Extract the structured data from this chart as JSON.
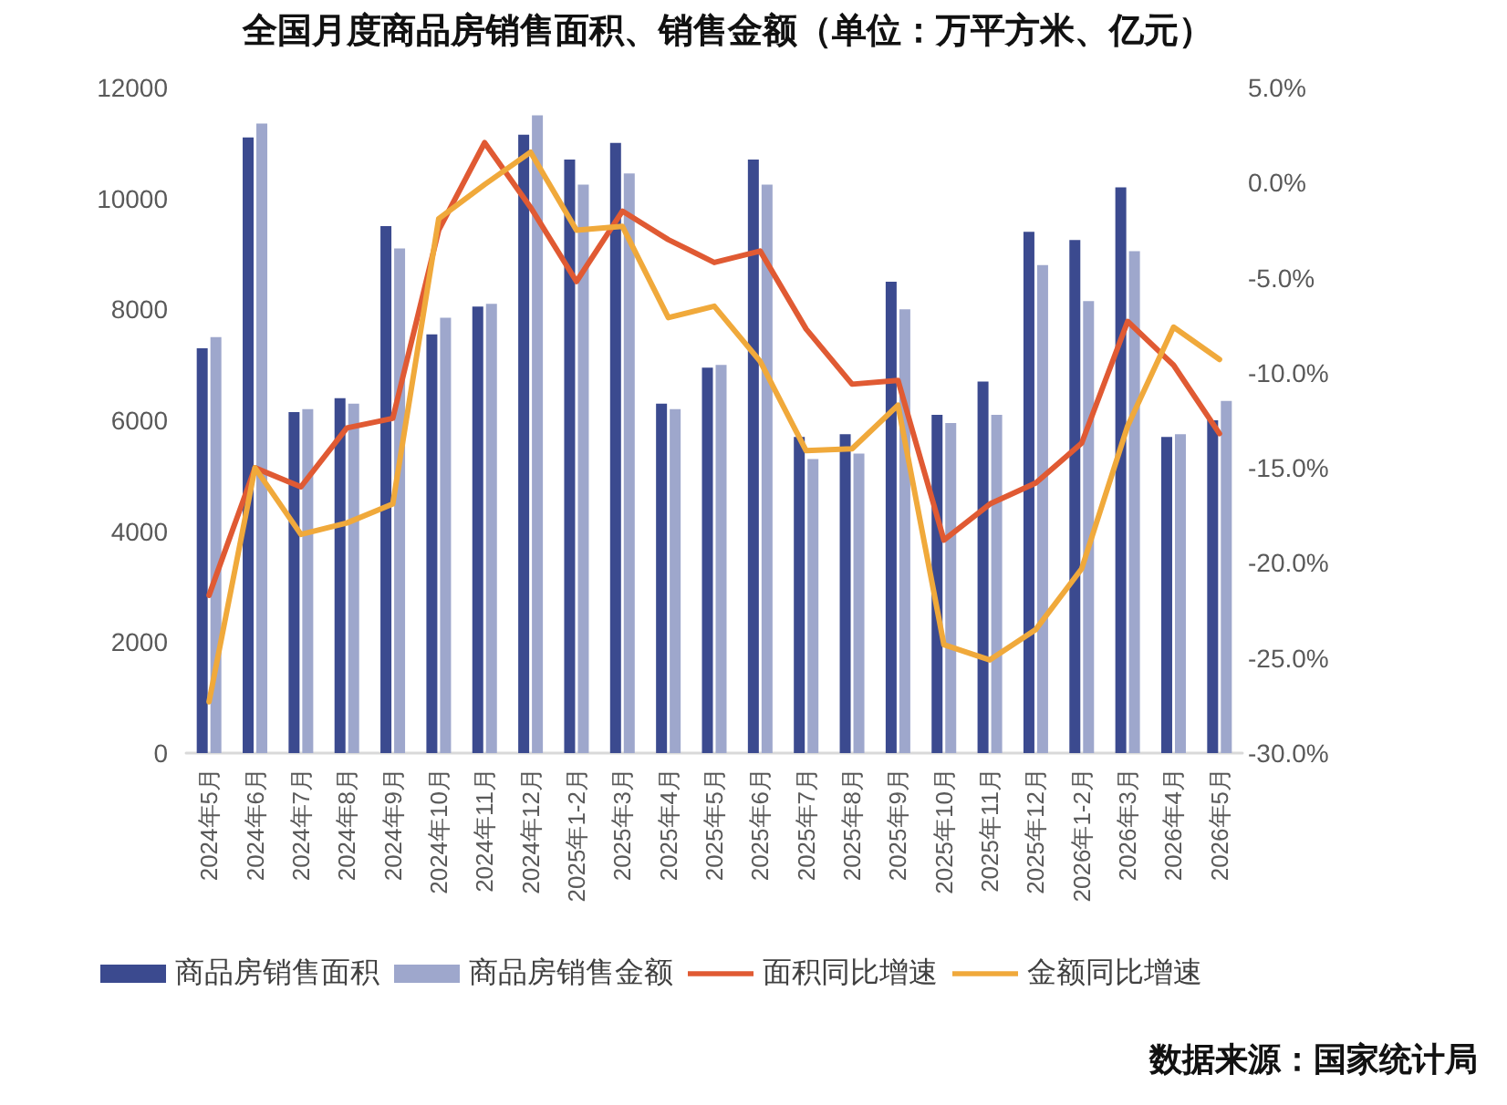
{
  "chart_data": {
    "type": "bar",
    "title": "全国月度商品房销售面积、销售金额（单位：万平方米、亿元）",
    "categories": [
      "2024年5月",
      "2024年6月",
      "2024年7月",
      "2024年8月",
      "2024年9月",
      "2024年10月",
      "2024年11月",
      "2024年12月",
      "2025年1-2月",
      "2025年3月",
      "2025年4月",
      "2025年5月",
      "2025年6月",
      "2025年7月",
      "2025年8月",
      "2025年9月",
      "2025年10月",
      "2025年11月",
      "2025年12月",
      "2026年1-2月",
      "2026年3月",
      "2026年4月",
      "2026年5月"
    ],
    "series": [
      {
        "name": "商品房销售面积",
        "color": "#3b4a8f",
        "values": [
          7300,
          11100,
          6150,
          6400,
          9500,
          7550,
          8050,
          11150,
          10700,
          11000,
          6300,
          6950,
          10700,
          5700,
          5750,
          8500,
          6100,
          6700,
          9400,
          9250,
          10200,
          5700,
          6000
        ]
      },
      {
        "name": "商品房销售金额",
        "color": "#9ea7cc",
        "values": [
          7500,
          11350,
          6200,
          6300,
          9100,
          7850,
          8100,
          11500,
          10250,
          10450,
          6200,
          7000,
          10250,
          5300,
          5400,
          8000,
          5950,
          6100,
          8800,
          8150,
          9050,
          5750,
          6350
        ]
      },
      {
        "name": "面积同比增速",
        "type": "line",
        "axis": "y2",
        "color": "#e05a33",
        "values": [
          -21.7,
          -15.0,
          -16.0,
          -12.9,
          -12.4,
          -2.5,
          2.1,
          -1.3,
          -5.2,
          -1.5,
          -3.0,
          -4.2,
          -3.6,
          -7.7,
          -10.6,
          -10.4,
          -18.8,
          -16.9,
          -15.8,
          -13.7,
          -7.3,
          -9.6,
          -13.2
        ]
      },
      {
        "name": "金额同比增速",
        "type": "line",
        "axis": "y2",
        "color": "#f0a93b",
        "values": [
          -27.3,
          -15.0,
          -18.5,
          -17.9,
          -16.9,
          -1.9,
          -0.1,
          1.6,
          -2.5,
          -2.3,
          -7.1,
          -6.5,
          -9.4,
          -14.1,
          -14.0,
          -11.7,
          -24.3,
          -25.1,
          -23.5,
          -20.3,
          -12.8,
          -7.6,
          -9.3
        ]
      }
    ],
    "ylim": [
      0,
      12000
    ],
    "yticks": [
      0,
      2000,
      4000,
      6000,
      8000,
      10000,
      12000
    ],
    "y2lim": [
      -30,
      5
    ],
    "y2ticks": [
      {
        "value": -30,
        "label": "-30.0%"
      },
      {
        "value": -25,
        "label": "-25.0%"
      },
      {
        "value": -20,
        "label": "-20.0%"
      },
      {
        "value": -15,
        "label": "-15.0%"
      },
      {
        "value": -10,
        "label": "-10.0%"
      },
      {
        "value": -5,
        "label": "-5.0%"
      },
      {
        "value": 0,
        "label": "0.0%"
      },
      {
        "value": 5,
        "label": "5.0%"
      }
    ],
    "legend": "bottom",
    "marker": "none",
    "annotations": [
      "数据来源：国家统计局"
    ]
  }
}
